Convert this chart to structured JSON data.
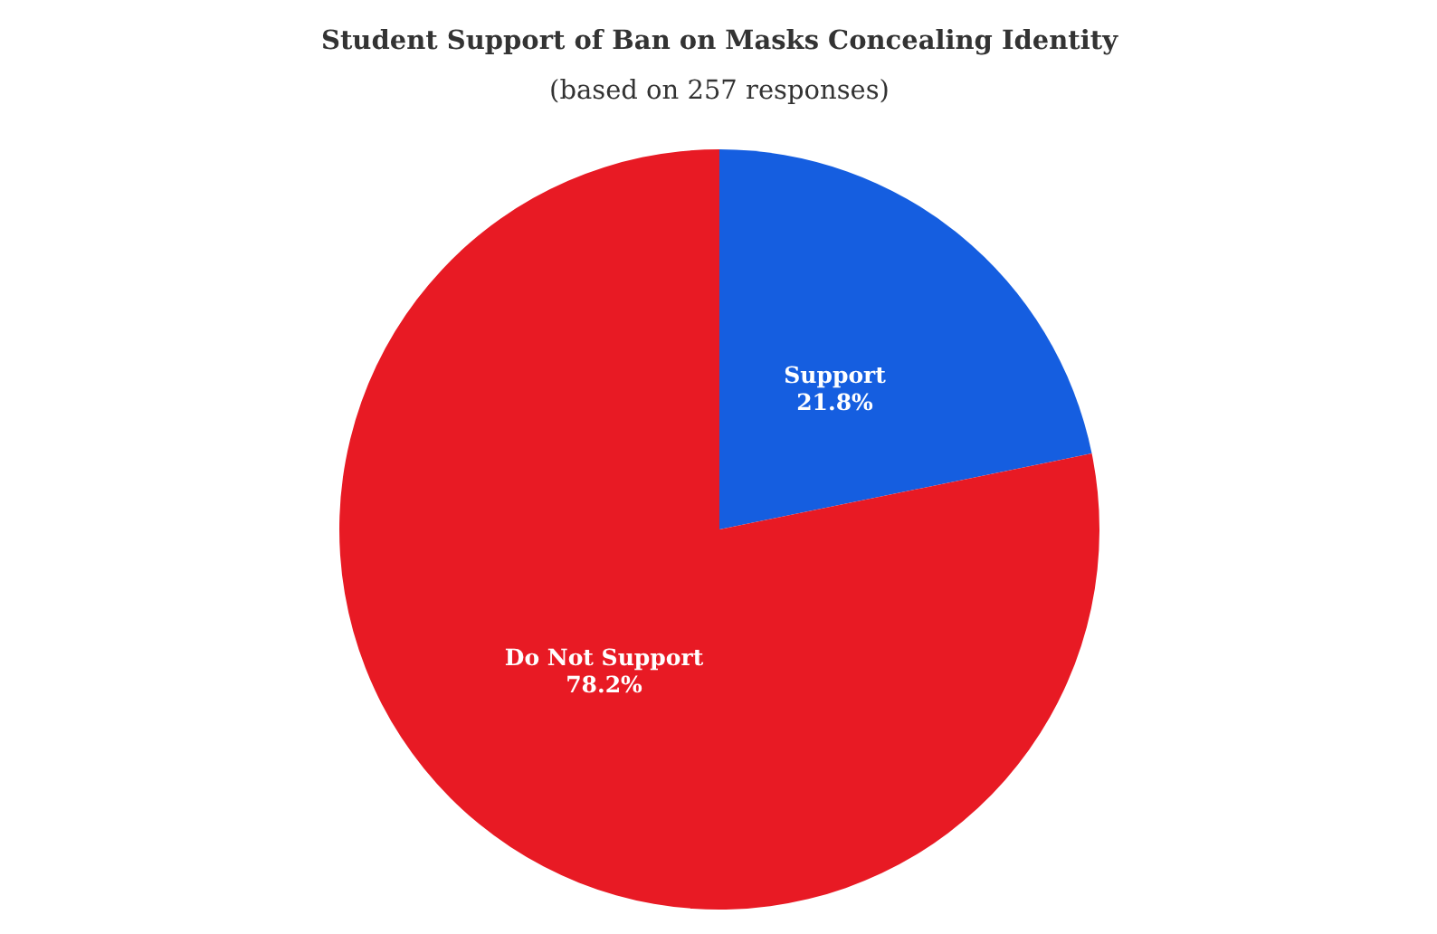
{
  "chart_data": {
    "type": "pie",
    "title": "Student Support of Ban on Masks Concealing Identity",
    "subtitle": "(based on 257 responses)",
    "categories": [
      "Support",
      "Do Not Support"
    ],
    "values": [
      21.8,
      78.2
    ],
    "colors": [
      "#155ee0",
      "#e81a24"
    ],
    "value_labels": [
      "21.8%",
      "78.2%"
    ]
  }
}
